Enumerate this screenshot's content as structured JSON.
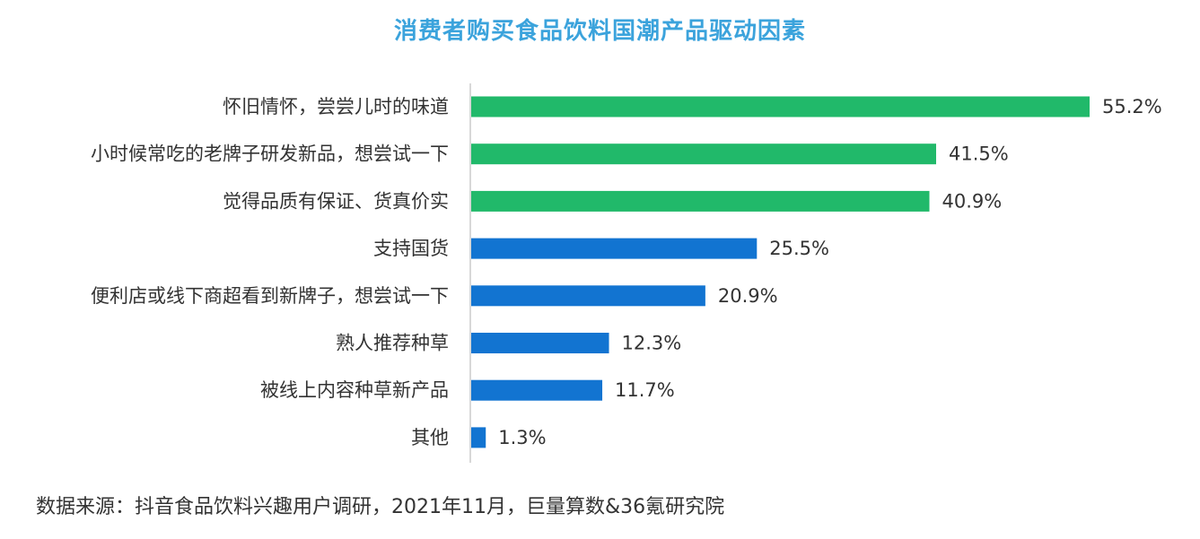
{
  "chart_data": {
    "type": "bar",
    "orientation": "horizontal",
    "title": "消费者购买食品饮料国潮产品驱动因素",
    "categories": [
      "怀旧情怀，尝尝儿时的味道",
      "小时候常吃的老牌子研发新品，想尝试一下",
      "觉得品质有保证、货真价实",
      "支持国货",
      "便利店或线下商超看到新牌子，想尝试一下",
      "熟人推荐种草",
      "被线上内容种草新产品",
      "其他"
    ],
    "values": [
      55.2,
      41.5,
      40.9,
      25.5,
      20.9,
      12.3,
      11.7,
      1.3
    ],
    "value_labels": [
      "55.2%",
      "41.5%",
      "40.9%",
      "25.5%",
      "20.9%",
      "12.3%",
      "11.7%",
      "1.3%"
    ],
    "bar_colors": [
      "#21b96a",
      "#21b96a",
      "#21b96a",
      "#1274d1",
      "#1274d1",
      "#1274d1",
      "#1274d1",
      "#1274d1"
    ],
    "xlim": [
      0,
      60
    ],
    "xlabel": "",
    "ylabel": "",
    "grid": false,
    "legend": "none"
  },
  "colors": {
    "title": "#3ba3dc",
    "highlight_bar": "#21b96a",
    "standard_bar": "#1274d1",
    "axis": "#bfbfbf",
    "text": "#333333"
  },
  "source_note": "数据来源：抖音食品饮料兴趣用户调研，2021年11月，巨量算数&36氪研究院"
}
